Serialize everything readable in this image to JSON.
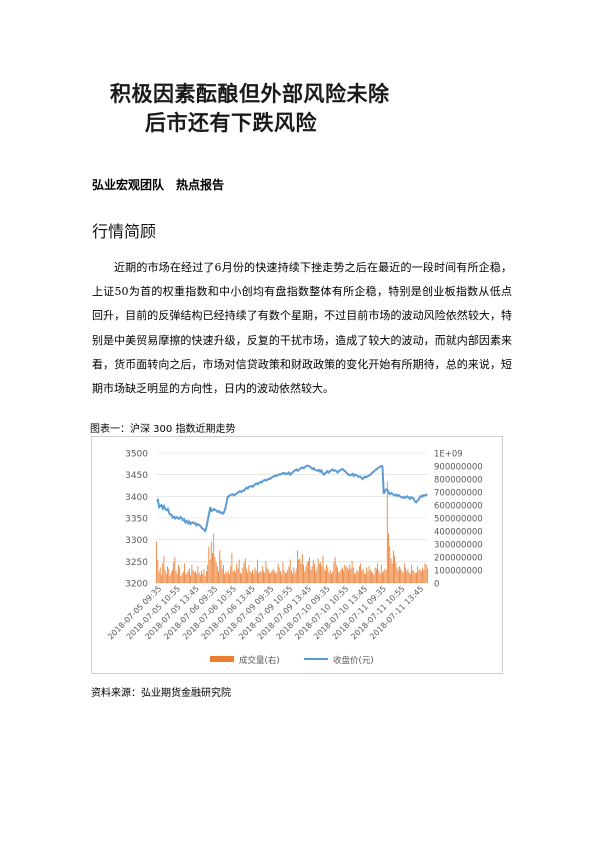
{
  "title": {
    "line1": "积极因素酝酿但外部风险未除",
    "line2": "后市还有下跌风险"
  },
  "subtitle": "弘业宏观团队　热点报告",
  "section_heading": "行情简顾",
  "paragraph": "近期的市场在经过了6月份的快速持续下挫走势之后在最近的一段时间有所企稳，上证50为首的权重指数和中小创均有盘指数整体有所企稳，特别是创业板指数从低点回升，目前的反弹结构已经持续了有数个星期，不过目前市场的波动风险依然较大，特别是中美贸易摩擦的快速升级，反复的干扰市场，造成了较大的波动，而就内部因素来看，货币面转向之后，市场对信贷政策和财政政策的变化开始有所期待，总的来说，短期市场缺乏明显的方向性，日内的波动依然较大。",
  "figure_caption": "图表一：沪深 300 指数近期走势",
  "source": "资料来源：弘业期货金融研究院",
  "colors": {
    "price_line": "#5b9bd5",
    "volume_bar": "#ed7d31",
    "axis_text": "#595959",
    "grid": "#d9d9d9"
  },
  "chart_data": {
    "type": "bar+line",
    "left_axis": {
      "ticks": [
        "3200",
        "3250",
        "3300",
        "3350",
        "3400",
        "3450",
        "3500"
      ],
      "range": [
        3200,
        3500
      ]
    },
    "right_axis": {
      "ticks": [
        "0",
        "100000000",
        "200000000",
        "300000000",
        "400000000",
        "500000000",
        "600000000",
        "700000000",
        "800000000",
        "900000000",
        "1E+09"
      ],
      "range": [
        0,
        1000000000
      ]
    },
    "x_labels": [
      "2018-07-05 09:35",
      "2018-07-05 10:55",
      "2018-07-05 13:45",
      "2018-07-06 09:35",
      "2018-07-06 10:55",
      "2018-07-06 13:45",
      "2018-07-09 09:35",
      "2018-07-09 10:55",
      "2018-07-09 13:45",
      "2018-07-10 09:35",
      "2018-07-10 10:55",
      "2018-07-10 13:45",
      "2018-07-11 09:35",
      "2018-07-11 10:55",
      "2018-07-11 13:45"
    ],
    "series": [
      {
        "name": "成交量(右)",
        "kind": "bar",
        "values": [
          320000000,
          180000000,
          90000000,
          120000000,
          60000000,
          150000000,
          210000000,
          100000000,
          70000000,
          130000000,
          110000000,
          60000000,
          85000000,
          100000000,
          160000000,
          200000000,
          95000000,
          70000000,
          140000000,
          120000000,
          55000000,
          75000000,
          90000000,
          150000000,
          65000000,
          80000000,
          95000000,
          110000000,
          60000000,
          140000000,
          100000000,
          85000000,
          90000000,
          70000000,
          130000000,
          80000000,
          60000000,
          95000000,
          70000000,
          110000000,
          50000000,
          90000000,
          140000000,
          280000000,
          180000000,
          320000000,
          230000000,
          380000000,
          200000000,
          160000000,
          130000000,
          90000000,
          250000000,
          180000000,
          110000000,
          140000000,
          70000000,
          90000000,
          80000000,
          95000000,
          70000000,
          130000000,
          230000000,
          90000000,
          100000000,
          80000000,
          150000000,
          110000000,
          180000000,
          80000000,
          70000000,
          120000000,
          160000000,
          190000000,
          110000000,
          80000000,
          140000000,
          90000000,
          80000000,
          100000000,
          70000000,
          120000000,
          95000000,
          180000000,
          75000000,
          90000000,
          85000000,
          130000000,
          95000000,
          80000000,
          170000000,
          120000000,
          100000000,
          75000000,
          80000000,
          95000000,
          110000000,
          90000000,
          70000000,
          85000000,
          150000000,
          120000000,
          90000000,
          60000000,
          160000000,
          95000000,
          75000000,
          80000000,
          100000000,
          130000000,
          180000000,
          95000000,
          70000000,
          120000000,
          80000000,
          110000000,
          250000000,
          180000000,
          190000000,
          150000000,
          220000000,
          140000000,
          90000000,
          130000000,
          160000000,
          170000000,
          200000000,
          100000000,
          130000000,
          180000000,
          150000000,
          85000000,
          110000000,
          190000000,
          150000000,
          160000000,
          130000000,
          210000000,
          110000000,
          95000000,
          140000000,
          120000000,
          80000000,
          100000000,
          70000000,
          90000000,
          160000000,
          200000000,
          140000000,
          120000000,
          80000000,
          90000000,
          110000000,
          120000000,
          95000000,
          140000000,
          130000000,
          120000000,
          100000000,
          140000000,
          110000000,
          170000000,
          120000000,
          70000000,
          80000000,
          100000000,
          90000000,
          130000000,
          150000000,
          100000000,
          110000000,
          80000000,
          70000000,
          120000000,
          90000000,
          130000000,
          100000000,
          90000000,
          80000000,
          65000000,
          120000000,
          110000000,
          150000000,
          95000000,
          70000000,
          140000000,
          80000000,
          90000000,
          110000000,
          100000000,
          780000000,
          380000000,
          280000000,
          190000000,
          150000000,
          250000000,
          210000000,
          160000000,
          120000000,
          100000000,
          130000000,
          110000000,
          95000000,
          80000000,
          150000000,
          120000000,
          90000000,
          110000000,
          80000000,
          70000000,
          140000000,
          100000000,
          90000000,
          75000000,
          80000000,
          130000000,
          95000000,
          110000000,
          90000000,
          120000000,
          100000000,
          150000000,
          140000000,
          110000000
        ]
      },
      {
        "name": "收盘价(元)",
        "kind": "line",
        "values": [
          3390,
          3392,
          3375,
          3378,
          3380,
          3372,
          3377,
          3370,
          3368,
          3371,
          3362,
          3358,
          3357,
          3351,
          3353,
          3349,
          3352,
          3350,
          3348,
          3352,
          3350,
          3345,
          3347,
          3340,
          3343,
          3338,
          3342,
          3336,
          3339,
          3340,
          3337,
          3338,
          3333,
          3336,
          3334,
          3332,
          3328,
          3325,
          3323,
          3320,
          3330,
          3345,
          3360,
          3375,
          3366,
          3368,
          3371,
          3368,
          3367,
          3364,
          3366,
          3362,
          3363,
          3360,
          3363,
          3371,
          3385,
          3399,
          3400,
          3403,
          3404,
          3405,
          3402,
          3404,
          3406,
          3408,
          3411,
          3412,
          3410,
          3413,
          3413,
          3417,
          3420,
          3418,
          3422,
          3423,
          3424,
          3422,
          3425,
          3428,
          3430,
          3428,
          3431,
          3433,
          3432,
          3435,
          3437,
          3438,
          3436,
          3439,
          3441,
          3440,
          3443,
          3445,
          3446,
          3448,
          3447,
          3449,
          3451,
          3450,
          3452,
          3453,
          3454,
          3451,
          3453,
          3452,
          3455,
          3450,
          3453,
          3455,
          3458,
          3460,
          3462,
          3459,
          3461,
          3464,
          3465,
          3467,
          3465,
          3468,
          3470,
          3471,
          3470,
          3468,
          3466,
          3463,
          3465,
          3461,
          3460,
          3459,
          3461,
          3457,
          3460,
          3454,
          3450,
          3453,
          3455,
          3458,
          3455,
          3458,
          3460,
          3462,
          3459,
          3460,
          3458,
          3455,
          3458,
          3460,
          3462,
          3463,
          3460,
          3458,
          3455,
          3452,
          3450,
          3448,
          3450,
          3452,
          3447,
          3450,
          3449,
          3447,
          3445,
          3446,
          3443,
          3440,
          3443,
          3446,
          3444,
          3446,
          3448,
          3449,
          3452,
          3455,
          3457,
          3460,
          3462,
          3464,
          3466,
          3468,
          3470,
          3469,
          3406,
          3412,
          3416,
          3414,
          3408,
          3405,
          3408,
          3406,
          3403,
          3402,
          3404,
          3401,
          3403,
          3400,
          3398,
          3397,
          3399,
          3396,
          3398,
          3400,
          3397,
          3394,
          3398,
          3396,
          3395,
          3388,
          3386,
          3390,
          3392,
          3398,
          3401,
          3399,
          3403,
          3402,
          3404,
          3403
        ]
      }
    ]
  }
}
